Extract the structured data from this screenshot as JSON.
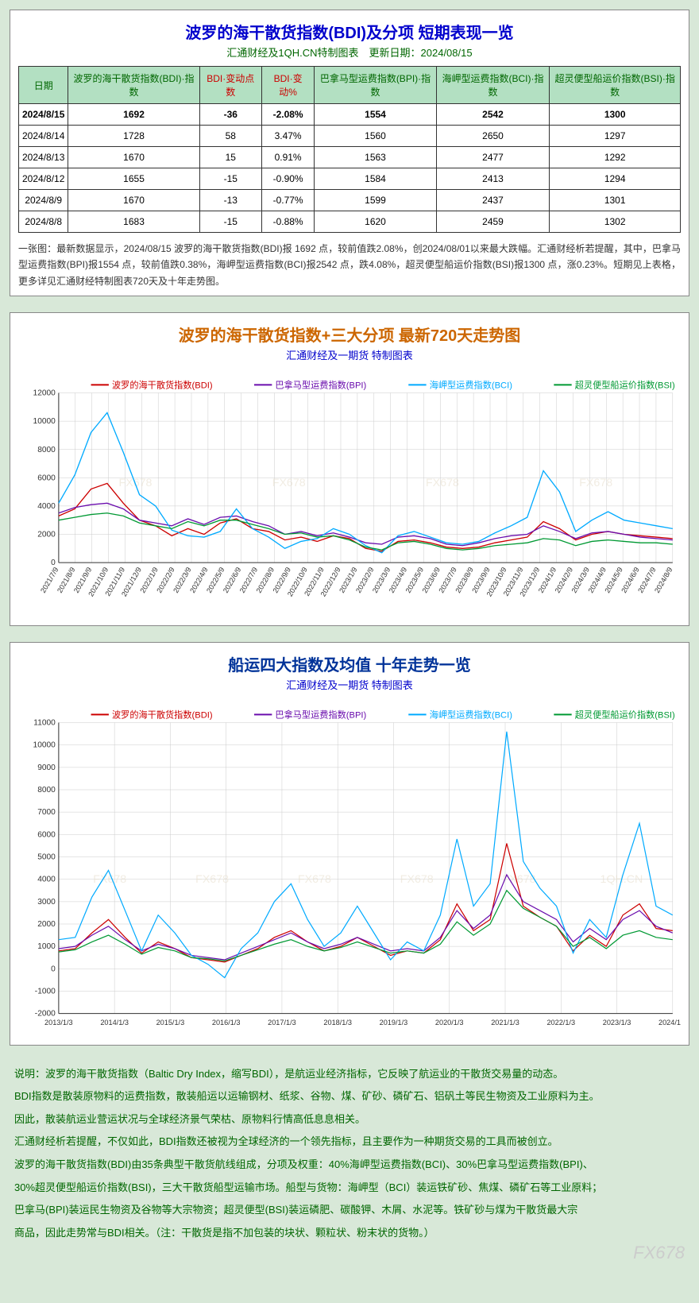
{
  "table_panel": {
    "title": "波罗的海干散货指数(BDI)及分项 短期表现一览",
    "subtitle": "汇通财经及1QH.CN特制图表　更新日期：2024/08/15",
    "columns": [
      {
        "label": "日期",
        "color": "green"
      },
      {
        "label": "波罗的海干散货指数(BDI)·指数",
        "color": "green"
      },
      {
        "label": "BDI·变动点数",
        "color": "red"
      },
      {
        "label": "BDI·变动%",
        "color": "red"
      },
      {
        "label": "巴拿马型运费指数(BPI)·指数",
        "color": "green"
      },
      {
        "label": "海岬型运费指数(BCI)·指数",
        "color": "green"
      },
      {
        "label": "超灵便型船运价指数(BSI)·指数",
        "color": "green"
      }
    ],
    "rows": [
      {
        "hi": true,
        "cells": [
          "2024/8/15",
          "1692",
          "-36",
          "-2.08%",
          "1554",
          "2542",
          "1300"
        ]
      },
      {
        "hi": false,
        "cells": [
          "2024/8/14",
          "1728",
          "58",
          "3.47%",
          "1560",
          "2650",
          "1297"
        ]
      },
      {
        "hi": false,
        "cells": [
          "2024/8/13",
          "1670",
          "15",
          "0.91%",
          "1563",
          "2477",
          "1292"
        ]
      },
      {
        "hi": false,
        "cells": [
          "2024/8/12",
          "1655",
          "-15",
          "-0.90%",
          "1584",
          "2413",
          "1294"
        ]
      },
      {
        "hi": false,
        "cells": [
          "2024/8/9",
          "1670",
          "-13",
          "-0.77%",
          "1599",
          "2437",
          "1301"
        ]
      },
      {
        "hi": false,
        "cells": [
          "2024/8/8",
          "1683",
          "-15",
          "-0.88%",
          "1620",
          "2459",
          "1302"
        ]
      }
    ],
    "note": "一张图：最新数据显示，2024/08/15 波罗的海干散货指数(BDI)报 1692 点，较前值跌2.08%，创2024/08/01以来最大跌幅。汇通财经析若提醒，其中，巴拿马型运费指数(BPI)报1554 点，较前值跌0.38%，海岬型运费指数(BCI)报2542 点，跌4.08%，超灵便型船运价指数(BSI)报1300 点，涨0.23%。短期见上表格，更多详见汇通财经特制图表720天及十年走势图。"
  },
  "chart720": {
    "title": "波罗的海干散货指数+三大分项 最新720天走势图",
    "subtitle": "汇通财经及一期货 特制图表",
    "background_color": "#ffffff",
    "grid_color": "#cccccc",
    "axis_color": "#333333",
    "ylim": [
      0,
      12000
    ],
    "ytick_step": 2000,
    "yticks": [
      0,
      2000,
      4000,
      6000,
      8000,
      10000,
      12000
    ],
    "xticks": [
      "2021/7/9",
      "2021/8/9",
      "2021/9/9",
      "2021/10/9",
      "2021/11/9",
      "2021/12/9",
      "2022/1/9",
      "2022/2/9",
      "2022/3/9",
      "2022/4/9",
      "2022/5/9",
      "2022/6/9",
      "2022/7/9",
      "2022/8/9",
      "2022/9/9",
      "2022/10/9",
      "2022/11/9",
      "2022/12/9",
      "2023/1/9",
      "2023/2/9",
      "2023/3/9",
      "2023/4/9",
      "2023/5/9",
      "2023/6/9",
      "2023/7/9",
      "2023/8/9",
      "2023/9/9",
      "2023/10/9",
      "2023/11/9",
      "2023/12/9",
      "2024/1/9",
      "2024/2/9",
      "2024/3/9",
      "2024/4/9",
      "2024/5/9",
      "2024/6/9",
      "2024/7/9",
      "2024/8/9"
    ],
    "watermarks": [
      "FX678",
      "FX678",
      "FX678",
      "FX678"
    ],
    "series": [
      {
        "name": "波罗的海干散货指数(BDI)",
        "color": "#cc0000",
        "width": 1.3,
        "values": [
          3300,
          3800,
          5200,
          5600,
          4200,
          3000,
          2600,
          1900,
          2400,
          2000,
          2800,
          3100,
          2400,
          2200,
          1600,
          1800,
          1500,
          1900,
          1700,
          1000,
          800,
          1500,
          1600,
          1400,
          1100,
          1000,
          1100,
          1400,
          1600,
          1800,
          2900,
          2400,
          1600,
          2000,
          2200,
          2000,
          1900,
          1800,
          1700
        ]
      },
      {
        "name": "巴拿马型运费指数(BPI)",
        "color": "#6a0dad",
        "width": 1.3,
        "values": [
          3500,
          3900,
          4100,
          4200,
          3800,
          3000,
          2800,
          2600,
          3100,
          2700,
          3200,
          3300,
          2900,
          2600,
          2000,
          2200,
          1900,
          2100,
          1800,
          1400,
          1300,
          1800,
          1900,
          1700,
          1300,
          1200,
          1400,
          1700,
          1900,
          2000,
          2600,
          2200,
          1700,
          2100,
          2200,
          2000,
          1800,
          1700,
          1600
        ]
      },
      {
        "name": "海岬型运费指数(BCI)",
        "color": "#00aaff",
        "width": 1.3,
        "values": [
          4200,
          6200,
          9200,
          10600,
          7800,
          4800,
          4000,
          2300,
          1900,
          1800,
          2200,
          3800,
          2400,
          1800,
          1000,
          1500,
          1700,
          2400,
          2000,
          1200,
          700,
          1900,
          2200,
          1800,
          1400,
          1300,
          1500,
          2100,
          2600,
          3200,
          6500,
          5000,
          2200,
          3000,
          3600,
          3000,
          2800,
          2600,
          2400
        ]
      },
      {
        "name": "超灵便型船运价指数(BSI)",
        "color": "#009933",
        "width": 1.3,
        "values": [
          3000,
          3200,
          3400,
          3500,
          3300,
          2800,
          2600,
          2400,
          2900,
          2600,
          3000,
          3000,
          2700,
          2400,
          2000,
          2100,
          1800,
          1900,
          1600,
          1100,
          900,
          1400,
          1500,
          1300,
          1000,
          900,
          1000,
          1200,
          1300,
          1400,
          1700,
          1600,
          1200,
          1500,
          1600,
          1500,
          1400,
          1400,
          1300
        ]
      }
    ]
  },
  "chart10y": {
    "title": "船运四大指数及均值 十年走势一览",
    "subtitle": "汇通财经及一期货 特制图表",
    "background_color": "#ffffff",
    "grid_color": "#cccccc",
    "axis_color": "#333333",
    "ylim": [
      -2000,
      11000
    ],
    "ytick_step": 1000,
    "yticks": [
      -2000,
      -1000,
      0,
      1000,
      2000,
      3000,
      4000,
      5000,
      6000,
      7000,
      8000,
      9000,
      10000,
      11000
    ],
    "xticks": [
      "2013/1/3",
      "2014/1/3",
      "2015/1/3",
      "2016/1/3",
      "2017/1/3",
      "2018/1/3",
      "2019/1/3",
      "2020/1/3",
      "2021/1/3",
      "2022/1/3",
      "2023/1/3",
      "2024/1/3"
    ],
    "watermarks": [
      "FX678",
      "FX678",
      "FX678",
      "FX678",
      "FX678",
      "1QH.CN"
    ],
    "series": [
      {
        "name": "波罗的海干散货指数(BDI)",
        "color": "#cc0000",
        "width": 1.2,
        "values": [
          800,
          900,
          1600,
          2200,
          1400,
          700,
          1200,
          900,
          500,
          400,
          300,
          600,
          900,
          1400,
          1700,
          1200,
          800,
          1000,
          1400,
          1000,
          600,
          800,
          700,
          1300,
          2900,
          1700,
          2200,
          5600,
          2800,
          2300,
          1900,
          800,
          1500,
          1000,
          2400,
          2900,
          1800,
          1700
        ]
      },
      {
        "name": "巴拿马型运费指数(BPI)",
        "color": "#6a0dad",
        "width": 1.2,
        "values": [
          900,
          1000,
          1500,
          1900,
          1300,
          800,
          1100,
          900,
          600,
          500,
          400,
          700,
          1000,
          1300,
          1600,
          1200,
          900,
          1100,
          1400,
          1100,
          800,
          900,
          800,
          1400,
          2600,
          1800,
          2400,
          4200,
          3000,
          2600,
          2200,
          1200,
          1800,
          1300,
          2200,
          2600,
          1900,
          1600
        ]
      },
      {
        "name": "海岬型运费指数(BCI)",
        "color": "#00aaff",
        "width": 1.2,
        "values": [
          1300,
          1400,
          3200,
          4400,
          2600,
          800,
          2400,
          1600,
          600,
          200,
          -400,
          900,
          1600,
          3000,
          3800,
          2200,
          1000,
          1600,
          2800,
          1600,
          400,
          1200,
          800,
          2400,
          5800,
          2800,
          3800,
          10600,
          4800,
          3600,
          2800,
          700,
          2200,
          1400,
          4200,
          6500,
          2800,
          2400
        ]
      },
      {
        "name": "超灵便型船运价指数(BSI)",
        "color": "#009933",
        "width": 1.2,
        "values": [
          750,
          850,
          1200,
          1500,
          1100,
          650,
          950,
          800,
          500,
          450,
          350,
          600,
          850,
          1100,
          1300,
          1000,
          800,
          950,
          1200,
          950,
          700,
          800,
          700,
          1100,
          2100,
          1500,
          2000,
          3500,
          2700,
          2300,
          1900,
          1000,
          1400,
          900,
          1500,
          1700,
          1400,
          1300
        ]
      }
    ]
  },
  "description": [
    "说明：波罗的海干散货指数（Baltic Dry Index，缩写BDI），是航运业经济指标，它反映了航运业的干散货交易量的动态。",
    "BDI指数是散装原物料的运费指数，散装船运以运输钢材、纸浆、谷物、煤、矿砂、磷矿石、铝矾土等民生物资及工业原料为主。",
    "因此，散装航运业营运状况与全球经济景气荣枯、原物料行情高低息息相关。",
    "汇通财经析若提醒，不仅如此，BDI指数还被视为全球经济的一个领先指标，且主要作为一种期货交易的工具而被创立。",
    "波罗的海干散货指数(BDI)由35条典型干散货航线组成，分项及权重：40%海岬型运费指数(BCI)、30%巴拿马型运费指数(BPI)、",
    "30%超灵便型船运价指数(BSI)，三大干散货船型运输市场。船型与货物：海岬型（BCI）装运铁矿砂、焦煤、磷矿石等工业原料；",
    "巴拿马(BPI)装运民生物资及谷物等大宗物资；超灵便型(BSI)装运磷肥、碳酸钾、木屑、水泥等。铁矿砂与煤为干散货最大宗",
    "商品，因此走势常与BDI相关。（注：干散货是指不加包装的块状、颗粒状、粉末状的货物。）"
  ],
  "corner_watermark": "FX678"
}
